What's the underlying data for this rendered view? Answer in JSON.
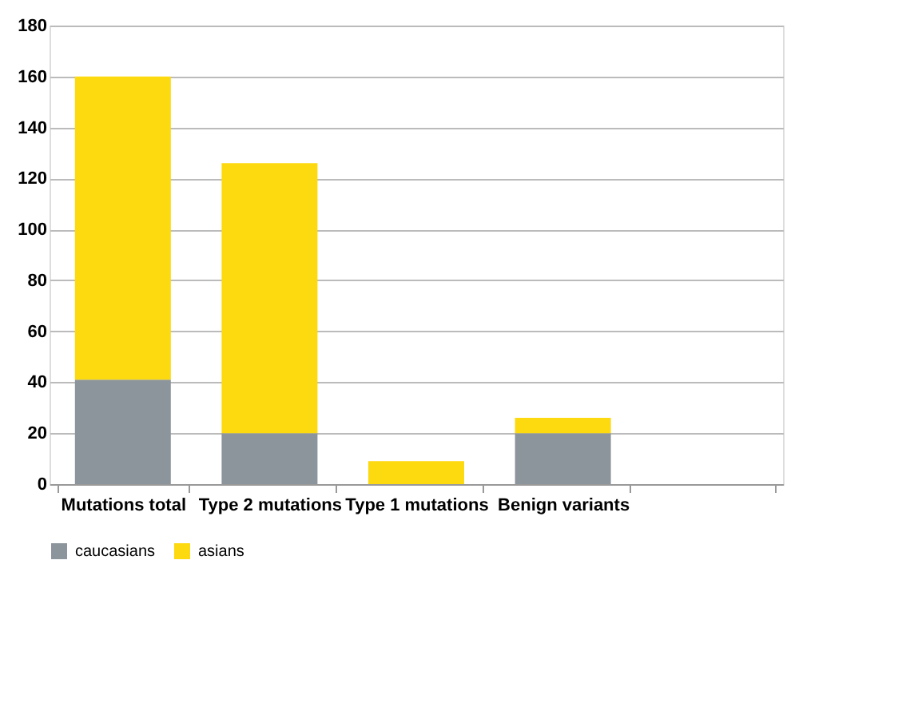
{
  "chart_data": {
    "type": "bar",
    "stacked": true,
    "categories": [
      "Mutations total",
      "Type 2 mutations",
      "Type 1 mutations",
      "Benign variants",
      null
    ],
    "series": [
      {
        "name": "caucasians",
        "color": "#8c959c",
        "values": [
          41,
          20,
          0,
          20,
          null
        ]
      },
      {
        "name": "asians",
        "color": "#fdd90f",
        "values": [
          119,
          106,
          9,
          6,
          null
        ]
      }
    ],
    "ylim": [
      0,
      180
    ],
    "yticks": [
      0,
      20,
      40,
      60,
      80,
      100,
      120,
      140,
      160,
      180
    ],
    "grid": "y",
    "legend": "bottom"
  }
}
